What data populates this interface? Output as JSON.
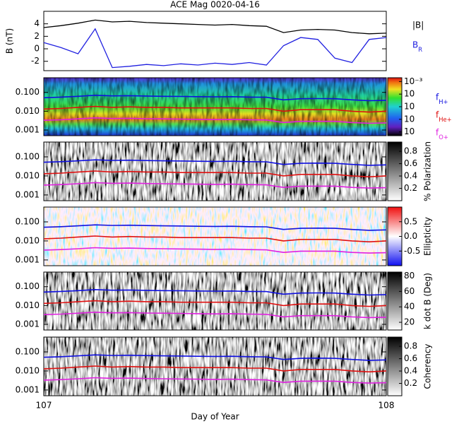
{
  "chart_data": [
    {
      "type": "line",
      "title": "ACE Mag 0020-04-16",
      "ylabel": "B (nT)",
      "x": [
        107.0,
        107.05,
        107.1,
        107.15,
        107.2,
        107.25,
        107.3,
        107.35,
        107.4,
        107.45,
        107.5,
        107.55,
        107.6,
        107.65,
        107.7,
        107.75,
        107.8,
        107.85,
        107.9,
        107.95,
        108.0
      ],
      "xlim": [
        107,
        108
      ],
      "ylim": [
        -3.5,
        6
      ],
      "yticks": [
        4,
        2,
        0,
        -2
      ],
      "series": [
        {
          "name": "|B|",
          "color": "#000000",
          "values": [
            3.4,
            3.7,
            4.1,
            4.6,
            4.3,
            4.4,
            4.2,
            4.1,
            4.0,
            3.9,
            3.8,
            3.9,
            3.7,
            3.6,
            2.6,
            3.0,
            3.1,
            3.0,
            2.6,
            2.4,
            2.5
          ]
        },
        {
          "name": "B_R",
          "color": "#2020e0",
          "values": [
            1.0,
            0.2,
            -0.8,
            3.2,
            -3.0,
            -2.8,
            -2.5,
            -2.7,
            -2.4,
            -2.6,
            -2.3,
            -2.5,
            -2.2,
            -2.6,
            0.5,
            1.8,
            1.5,
            -1.5,
            -2.2,
            1.5,
            1.8
          ]
        }
      ]
    },
    {
      "type": "spectrogram",
      "colormap": "rainbow",
      "x": [
        107.0,
        107.05,
        107.1,
        107.15,
        107.2,
        107.25,
        107.3,
        107.35,
        107.4,
        107.45,
        107.5,
        107.55,
        107.6,
        107.65,
        107.7,
        107.75,
        107.8,
        107.85,
        107.9,
        107.95,
        108.0
      ],
      "xlim": [
        107,
        108
      ],
      "ylim": [
        0.0005,
        0.6
      ],
      "log_y": true,
      "yticks": [
        {
          "value": 0.1,
          "label": "0.100"
        },
        {
          "value": 0.01,
          "label": "0.010"
        },
        {
          "value": 0.001,
          "label": "0.001"
        }
      ],
      "colorbar": {
        "lim": [
          -7.3,
          -2.7
        ],
        "ticks": [
          {
            "value": -3,
            "label": "10⁻³"
          },
          {
            "value": -4,
            "label": "10"
          },
          {
            "value": -5,
            "label": "10"
          },
          {
            "value": -6,
            "label": "10"
          },
          {
            "value": -7,
            "label": "10"
          }
        ]
      },
      "series": [
        {
          "name": "f_H+",
          "color": "#1010e0",
          "values": [
            0.052,
            0.056,
            0.062,
            0.07,
            0.065,
            0.067,
            0.064,
            0.062,
            0.061,
            0.059,
            0.058,
            0.059,
            0.056,
            0.055,
            0.04,
            0.046,
            0.047,
            0.046,
            0.04,
            0.036,
            0.038
          ]
        },
        {
          "name": "f_He+",
          "color": "#e01010",
          "values": [
            0.013,
            0.014,
            0.016,
            0.018,
            0.016,
            0.017,
            0.016,
            0.016,
            0.015,
            0.015,
            0.015,
            0.015,
            0.014,
            0.014,
            0.01,
            0.012,
            0.012,
            0.012,
            0.01,
            0.009,
            0.01
          ]
        },
        {
          "name": "f_O+",
          "color": "#e020e0",
          "values": [
            0.0033,
            0.0035,
            0.0039,
            0.0044,
            0.0041,
            0.0042,
            0.004,
            0.0039,
            0.0038,
            0.0037,
            0.0036,
            0.0037,
            0.0035,
            0.0034,
            0.0025,
            0.0029,
            0.0029,
            0.0029,
            0.0025,
            0.0023,
            0.0024
          ]
        }
      ]
    },
    {
      "type": "spectrogram",
      "colormap": "gray",
      "x": [
        107.0,
        107.05,
        107.1,
        107.15,
        107.2,
        107.25,
        107.3,
        107.35,
        107.4,
        107.45,
        107.5,
        107.55,
        107.6,
        107.65,
        107.7,
        107.75,
        107.8,
        107.85,
        107.9,
        107.95,
        108.0
      ],
      "xlim": [
        107,
        108
      ],
      "ylim": [
        0.0005,
        0.6
      ],
      "log_y": true,
      "yticks": [
        {
          "value": 0.1,
          "label": "0.100"
        },
        {
          "value": 0.01,
          "label": "0.010"
        },
        {
          "value": 0.001,
          "label": "0.001"
        }
      ],
      "colorbar": {
        "label": "% Polarization",
        "lim": [
          0,
          0.95
        ],
        "ticks": [
          0.2,
          0.4,
          0.6,
          0.8
        ]
      },
      "series": [
        {
          "color": "#1010e0",
          "values": [
            0.052,
            0.056,
            0.062,
            0.07,
            0.065,
            0.067,
            0.064,
            0.062,
            0.061,
            0.059,
            0.058,
            0.059,
            0.056,
            0.055,
            0.04,
            0.046,
            0.047,
            0.046,
            0.04,
            0.036,
            0.038
          ]
        },
        {
          "color": "#e01010",
          "values": [
            0.013,
            0.014,
            0.016,
            0.018,
            0.016,
            0.017,
            0.016,
            0.016,
            0.015,
            0.015,
            0.015,
            0.015,
            0.014,
            0.014,
            0.01,
            0.012,
            0.012,
            0.012,
            0.01,
            0.009,
            0.01
          ]
        },
        {
          "color": "#e020e0",
          "values": [
            0.0033,
            0.0035,
            0.0039,
            0.0044,
            0.0041,
            0.0042,
            0.004,
            0.0039,
            0.0038,
            0.0037,
            0.0036,
            0.0037,
            0.0035,
            0.0034,
            0.0025,
            0.0029,
            0.0029,
            0.0029,
            0.0025,
            0.0023,
            0.0024
          ]
        }
      ]
    },
    {
      "type": "spectrogram",
      "colormap": "bwr",
      "x": [
        107.0,
        107.05,
        107.1,
        107.15,
        107.2,
        107.25,
        107.3,
        107.35,
        107.4,
        107.45,
        107.5,
        107.55,
        107.6,
        107.65,
        107.7,
        107.75,
        107.8,
        107.85,
        107.9,
        107.95,
        108.0
      ],
      "xlim": [
        107,
        108
      ],
      "ylim": [
        0.0005,
        0.6
      ],
      "log_y": true,
      "yticks": [
        {
          "value": 0.1,
          "label": "0.100"
        },
        {
          "value": 0.01,
          "label": "0.010"
        },
        {
          "value": 0.001,
          "label": "0.001"
        }
      ],
      "colorbar": {
        "label": "Ellipticity",
        "lim": [
          -1,
          1
        ],
        "ticks": [
          0.5,
          {
            "value": 0,
            "label": "0.0"
          },
          -0.5
        ]
      },
      "series": [
        {
          "color": "#1010e0",
          "values": [
            0.052,
            0.056,
            0.062,
            0.07,
            0.065,
            0.067,
            0.064,
            0.062,
            0.061,
            0.059,
            0.058,
            0.059,
            0.056,
            0.055,
            0.04,
            0.046,
            0.047,
            0.046,
            0.04,
            0.036,
            0.038
          ]
        },
        {
          "color": "#e01010",
          "values": [
            0.013,
            0.014,
            0.016,
            0.018,
            0.016,
            0.017,
            0.016,
            0.016,
            0.015,
            0.015,
            0.015,
            0.015,
            0.014,
            0.014,
            0.01,
            0.012,
            0.012,
            0.012,
            0.01,
            0.009,
            0.01
          ]
        },
        {
          "color": "#e020e0",
          "values": [
            0.0033,
            0.0035,
            0.0039,
            0.0044,
            0.0041,
            0.0042,
            0.004,
            0.0039,
            0.0038,
            0.0037,
            0.0036,
            0.0037,
            0.0035,
            0.0034,
            0.0025,
            0.0029,
            0.0029,
            0.0029,
            0.0025,
            0.0023,
            0.0024
          ]
        }
      ]
    },
    {
      "type": "spectrogram",
      "colormap": "gray",
      "x": [
        107.0,
        107.05,
        107.1,
        107.15,
        107.2,
        107.25,
        107.3,
        107.35,
        107.4,
        107.45,
        107.5,
        107.55,
        107.6,
        107.65,
        107.7,
        107.75,
        107.8,
        107.85,
        107.9,
        107.95,
        108.0
      ],
      "xlim": [
        107,
        108
      ],
      "ylim": [
        0.0005,
        0.6
      ],
      "log_y": true,
      "yticks": [
        {
          "value": 0.1,
          "label": "0.100"
        },
        {
          "value": 0.01,
          "label": "0.010"
        },
        {
          "value": 0.001,
          "label": "0.001"
        }
      ],
      "colorbar": {
        "label": "k dot B (Deg)",
        "lim": [
          10,
          85
        ],
        "ticks": [
          20,
          40,
          60,
          80
        ]
      },
      "series": [
        {
          "color": "#1010e0",
          "values": [
            0.052,
            0.056,
            0.062,
            0.07,
            0.065,
            0.067,
            0.064,
            0.062,
            0.061,
            0.059,
            0.058,
            0.059,
            0.056,
            0.055,
            0.04,
            0.046,
            0.047,
            0.046,
            0.04,
            0.036,
            0.038
          ]
        },
        {
          "color": "#e01010",
          "values": [
            0.013,
            0.014,
            0.016,
            0.018,
            0.016,
            0.017,
            0.016,
            0.016,
            0.015,
            0.015,
            0.015,
            0.015,
            0.014,
            0.014,
            0.01,
            0.012,
            0.012,
            0.012,
            0.01,
            0.009,
            0.01
          ]
        },
        {
          "color": "#e020e0",
          "values": [
            0.0033,
            0.0035,
            0.0039,
            0.0044,
            0.0041,
            0.0042,
            0.004,
            0.0039,
            0.0038,
            0.0037,
            0.0036,
            0.0037,
            0.0035,
            0.0034,
            0.0025,
            0.0029,
            0.0029,
            0.0029,
            0.0025,
            0.0023,
            0.0024
          ]
        }
      ]
    },
    {
      "type": "spectrogram",
      "colormap": "gray",
      "x": [
        107.0,
        107.05,
        107.1,
        107.15,
        107.2,
        107.25,
        107.3,
        107.35,
        107.4,
        107.45,
        107.5,
        107.55,
        107.6,
        107.65,
        107.7,
        107.75,
        107.8,
        107.85,
        107.9,
        107.95,
        108.0
      ],
      "xlim": [
        107,
        108
      ],
      "xticks": [
        107,
        108
      ],
      "xlabel": "Day of Year",
      "ylim": [
        0.0005,
        0.6
      ],
      "log_y": true,
      "yticks": [
        {
          "value": 0.1,
          "label": "0.100"
        },
        {
          "value": 0.01,
          "label": "0.010"
        },
        {
          "value": 0.001,
          "label": "0.001"
        }
      ],
      "colorbar": {
        "label": "Coherency",
        "lim": [
          0,
          0.95
        ],
        "ticks": [
          0.2,
          0.4,
          0.6,
          0.8
        ]
      },
      "series": [
        {
          "color": "#1010e0",
          "values": [
            0.052,
            0.056,
            0.062,
            0.07,
            0.065,
            0.067,
            0.064,
            0.062,
            0.061,
            0.059,
            0.058,
            0.059,
            0.056,
            0.055,
            0.04,
            0.046,
            0.047,
            0.046,
            0.04,
            0.036,
            0.038
          ]
        },
        {
          "color": "#e01010",
          "values": [
            0.013,
            0.014,
            0.016,
            0.018,
            0.016,
            0.017,
            0.016,
            0.016,
            0.015,
            0.015,
            0.015,
            0.015,
            0.014,
            0.014,
            0.01,
            0.012,
            0.012,
            0.012,
            0.01,
            0.009,
            0.01
          ]
        },
        {
          "color": "#e020e0",
          "values": [
            0.0033,
            0.0035,
            0.0039,
            0.0044,
            0.0041,
            0.0042,
            0.004,
            0.0039,
            0.0038,
            0.0037,
            0.0036,
            0.0037,
            0.0035,
            0.0034,
            0.0025,
            0.0029,
            0.0029,
            0.0029,
            0.0025,
            0.0023,
            0.0024
          ]
        }
      ]
    }
  ]
}
